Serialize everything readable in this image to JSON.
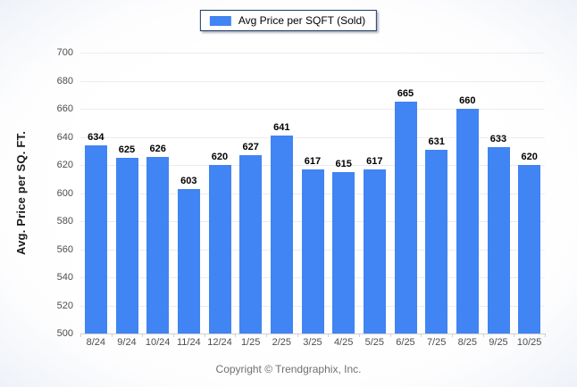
{
  "chart_data": {
    "type": "bar",
    "title": "",
    "categories": [
      "8/24",
      "9/24",
      "10/24",
      "11/24",
      "12/24",
      "1/25",
      "2/25",
      "3/25",
      "4/25",
      "5/25",
      "6/25",
      "7/25",
      "8/25",
      "9/25",
      "10/25"
    ],
    "series": [
      {
        "name": "Avg Price per SQFT (Sold)",
        "values": [
          634,
          625,
          626,
          603,
          620,
          627,
          641,
          617,
          615,
          617,
          665,
          631,
          660,
          633,
          620
        ]
      }
    ],
    "xlabel": "",
    "ylabel": "Avg. Price per SQ. FT.",
    "ylim": [
      500,
      700
    ],
    "ytick_step": 20,
    "grid": true,
    "legend_position": "top-center",
    "bar_color": "#4184F3",
    "data_labels": true
  },
  "legend": {
    "label": "Avg Price per SQFT (Sold)",
    "swatch_color": "#4184F3",
    "border_color": "#1f3864"
  },
  "footer": {
    "copyright": "Copyright © Trendgraphix, Inc."
  },
  "colors": {
    "bar": "#4184F3",
    "gridline": "#ececec",
    "baseline": "#cfcfcf",
    "axis_text": "#4d4d4d",
    "value_label": "#000000",
    "footer_text": "#707070"
  }
}
